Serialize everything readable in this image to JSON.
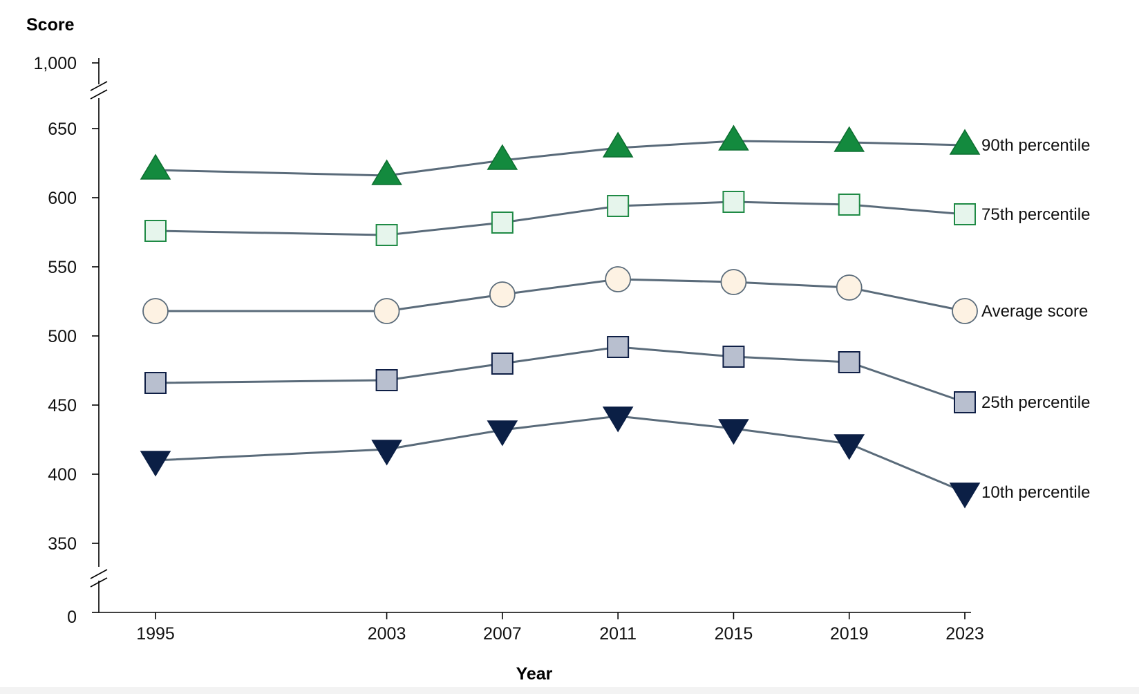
{
  "chart_data": {
    "type": "line",
    "ylabel": "Score",
    "xlabel": "Year",
    "x": [
      1995,
      2003,
      2007,
      2011,
      2015,
      2019,
      2023
    ],
    "y_ticks": [
      "0",
      "350",
      "400",
      "450",
      "500",
      "550",
      "600",
      "650",
      "1,000"
    ],
    "y_axis_break": true,
    "ylim_displayed": [
      350,
      650
    ],
    "grid": false,
    "series": [
      {
        "name": "90th percentile",
        "marker": "triangle-up",
        "fill": "#138a3e",
        "stroke": "#0d6e30",
        "values": [
          620,
          616,
          627,
          636,
          641,
          640,
          638
        ]
      },
      {
        "name": "75th percentile",
        "marker": "square",
        "fill": "#e6f5ec",
        "stroke": "#1f8a45",
        "values": [
          576,
          573,
          582,
          594,
          597,
          595,
          588
        ]
      },
      {
        "name": "Average score",
        "marker": "circle",
        "fill": "#fdf2e3",
        "stroke": "#5a6b7a",
        "values": [
          518,
          518,
          530,
          541,
          539,
          535,
          518
        ]
      },
      {
        "name": "25th percentile",
        "marker": "square",
        "fill": "#b8bfcf",
        "stroke": "#0e1e45",
        "values": [
          466,
          468,
          480,
          492,
          485,
          481,
          452
        ]
      },
      {
        "name": "10th percentile",
        "marker": "triangle-down",
        "fill": "#0b1f45",
        "stroke": "#0b1f45",
        "values": [
          410,
          418,
          432,
          442,
          433,
          422,
          387
        ]
      }
    ]
  }
}
